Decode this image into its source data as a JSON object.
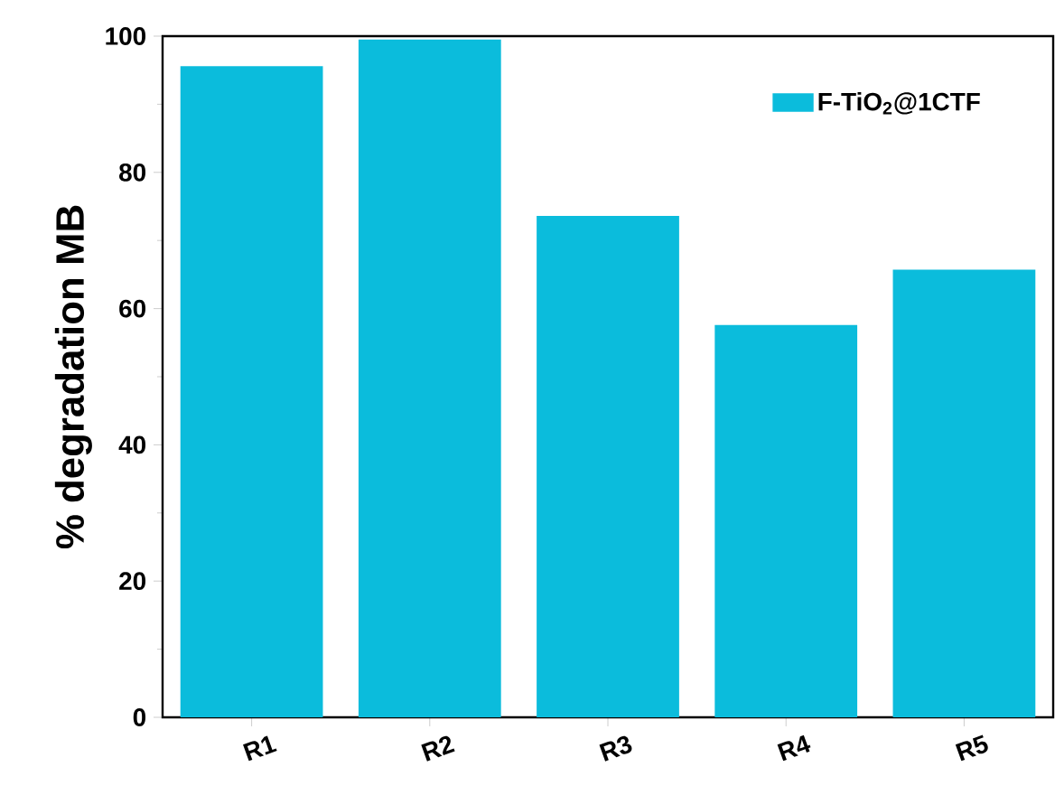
{
  "chart_data": {
    "type": "bar",
    "ylabel": "% degradation MB",
    "categories": [
      "R1",
      "R2",
      "R3",
      "R4",
      "R5"
    ],
    "series": [
      {
        "name": "F-TiO$_{2}$@1CTF",
        "color": "#0bbcdc",
        "values": [
          95.6,
          99.5,
          73.6,
          57.6,
          65.7
        ]
      }
    ],
    "ylim": [
      0,
      100
    ],
    "yticks": [
      0,
      20,
      40,
      60,
      80,
      100
    ],
    "grid": false,
    "legend": "top right"
  }
}
